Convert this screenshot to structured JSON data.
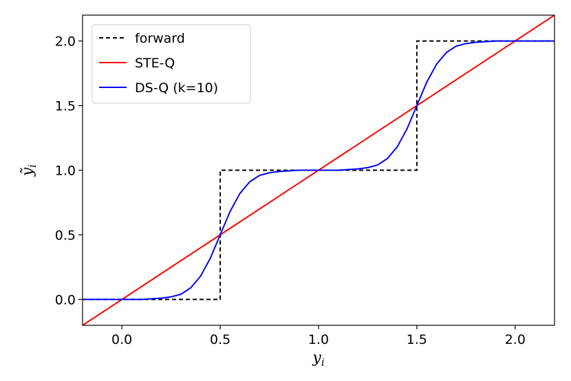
{
  "chart_data": {
    "type": "line",
    "title": "",
    "xlabel": "y",
    "xlabel_sub": "i",
    "ylabel": "ỹ",
    "ylabel_sub": "i",
    "xlim": [
      -0.2,
      2.2
    ],
    "ylim": [
      -0.2,
      2.2
    ],
    "xticks": [
      0.0,
      0.5,
      1.0,
      1.5,
      2.0
    ],
    "yticks": [
      0.0,
      0.5,
      1.0,
      1.5,
      2.0
    ],
    "xtick_labels": [
      "0.0",
      "0.5",
      "1.0",
      "1.5",
      "2.0"
    ],
    "ytick_labels": [
      "0.0",
      "0.5",
      "1.0",
      "1.5",
      "2.0"
    ],
    "grid": false,
    "legend_position": "top-left",
    "series": [
      {
        "name": "forward",
        "style": "dashed",
        "color": "#000000",
        "x": [
          -0.2,
          0.5,
          0.5,
          1.5,
          1.5,
          2.2
        ],
        "y": [
          0.0,
          0.0,
          1.0,
          1.0,
          2.0,
          2.0
        ]
      },
      {
        "name": "STE-Q",
        "style": "solid",
        "color": "#ff0000",
        "x": [
          -0.2,
          2.2
        ],
        "y": [
          -0.2,
          2.2
        ]
      },
      {
        "name": "DS-Q (k=10)",
        "style": "solid",
        "color": "#0000ff",
        "x": [
          -0.2,
          0.0,
          0.1,
          0.2,
          0.25,
          0.3,
          0.35,
          0.4,
          0.45,
          0.5,
          0.55,
          0.6,
          0.65,
          0.7,
          0.75,
          0.8,
          0.9,
          1.0,
          1.1,
          1.2,
          1.25,
          1.3,
          1.35,
          1.4,
          1.45,
          1.5,
          1.55,
          1.6,
          1.65,
          1.7,
          1.75,
          1.8,
          1.9,
          2.0,
          2.2
        ],
        "y": [
          0.0,
          0.0,
          0.0,
          0.01,
          0.02,
          0.04,
          0.09,
          0.18,
          0.32,
          0.5,
          0.68,
          0.82,
          0.91,
          0.96,
          0.98,
          0.99,
          1.0,
          1.0,
          1.0,
          1.01,
          1.02,
          1.04,
          1.09,
          1.18,
          1.32,
          1.5,
          1.68,
          1.82,
          1.91,
          1.96,
          1.98,
          1.99,
          2.0,
          2.0,
          2.0
        ]
      }
    ]
  }
}
